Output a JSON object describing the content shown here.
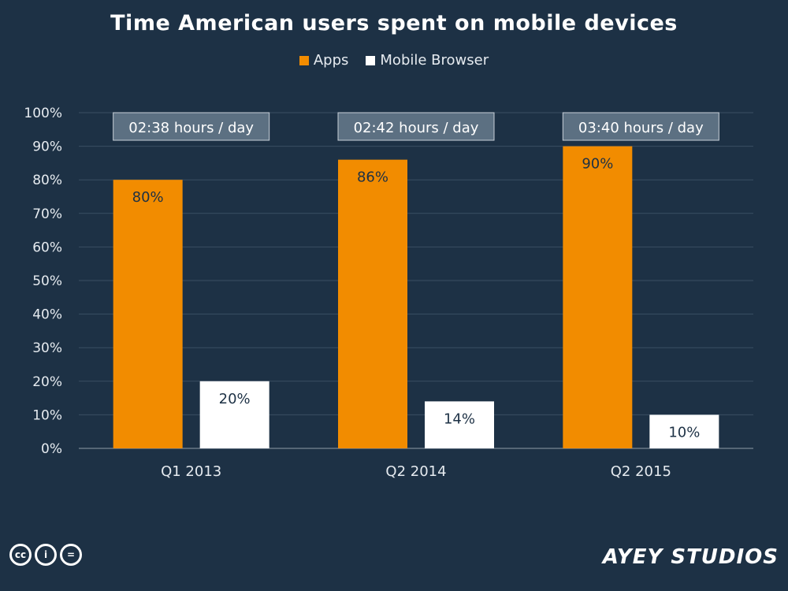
{
  "chart_data": {
    "type": "bar",
    "title": "Time American users spent on mobile devices",
    "categories": [
      "Q1 2013",
      "Q2 2014",
      "Q2 2015"
    ],
    "series": [
      {
        "name": "Apps",
        "values": [
          80,
          86,
          90
        ],
        "color": "#f28c00",
        "labels": [
          "80%",
          "86%",
          "90%"
        ]
      },
      {
        "name": "Mobile Browser",
        "values": [
          20,
          14,
          10
        ],
        "color": "#ffffff",
        "labels": [
          "20%",
          "14%",
          "10%"
        ]
      }
    ],
    "annotations": [
      "02:38 hours / day",
      "02:42 hours / day",
      "03:40 hours / day"
    ],
    "ylim": [
      0,
      100
    ],
    "yticks": [
      "0%",
      "10%",
      "20%",
      "30%",
      "40%",
      "50%",
      "60%",
      "70%",
      "80%",
      "90%",
      "100%"
    ],
    "grid": true,
    "legend_position": "top-center"
  },
  "footer": {
    "cc_icons": [
      "cc-icon",
      "by-icon",
      "nd-icon"
    ],
    "cc_labels": [
      "cc",
      "i",
      "="
    ],
    "brand": "AYEY STUDIOS"
  },
  "colors": {
    "background": "#1d3145",
    "gridline": "#3a4f63",
    "annotation_box": "#5c7082"
  }
}
